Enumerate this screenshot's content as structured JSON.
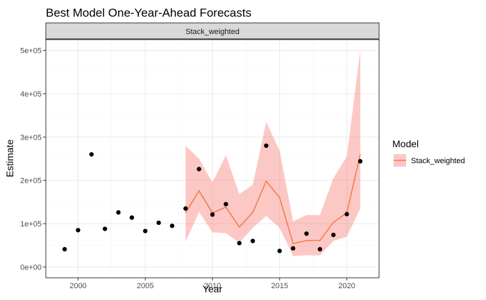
{
  "chart_data": {
    "type": "line",
    "title": "Best Model One-Year-Ahead Forecasts",
    "facet_label": "Stack_weighted",
    "xlabel": "Year",
    "ylabel": "Estimate",
    "xlim": [
      1997.6,
      2022.4
    ],
    "ylim": [
      -25000,
      525000
    ],
    "x_ticks": [
      2000,
      2005,
      2010,
      2015,
      2020
    ],
    "x_tick_labels": [
      "2000",
      "2005",
      "2010",
      "2015",
      "2020"
    ],
    "y_ticks": [
      0,
      100000,
      200000,
      300000,
      400000,
      500000
    ],
    "y_tick_labels": [
      "0e+00",
      "1e+05",
      "2e+05",
      "3e+05",
      "4e+05",
      "5e+05"
    ],
    "grid": true,
    "legend": {
      "title": "Model",
      "position": "right",
      "entries": [
        "Stack_weighted"
      ]
    },
    "points": {
      "x": [
        1999,
        2000,
        2001,
        2002,
        2003,
        2004,
        2005,
        2006,
        2007,
        2008,
        2009,
        2010,
        2011,
        2012,
        2013,
        2014,
        2015,
        2016,
        2017,
        2018,
        2019,
        2020,
        2021
      ],
      "y": [
        41000,
        85000,
        260000,
        88000,
        126000,
        114000,
        83000,
        102000,
        95000,
        135000,
        226000,
        121000,
        145000,
        55000,
        60000,
        280000,
        37000,
        43000,
        77000,
        41000,
        74000,
        122000,
        244000
      ]
    },
    "series": [
      {
        "name": "Stack_weighted",
        "x": [
          2008,
          2009,
          2010,
          2011,
          2012,
          2013,
          2014,
          2015,
          2016,
          2017,
          2018,
          2019,
          2020,
          2021
        ],
        "values": [
          125000,
          176000,
          125000,
          138000,
          92000,
          126000,
          198000,
          160000,
          54000,
          61000,
          61000,
          103000,
          125000,
          260000
        ],
        "lower": [
          58000,
          127000,
          80000,
          78000,
          56000,
          90000,
          118000,
          90000,
          25000,
          27000,
          27000,
          60000,
          70000,
          135000
        ],
        "upper": [
          280000,
          250000,
          195000,
          258000,
          168000,
          190000,
          335000,
          268000,
          105000,
          120000,
          120000,
          205000,
          255000,
          500000
        ]
      }
    ],
    "colors": {
      "line": "#f47c4d",
      "ribbon": "#f8766d",
      "points": "#000000",
      "panel_border": "#333333",
      "strip_fill": "#d9d9d9",
      "grid_major": "#ebebeb",
      "grid_minor": "#f5f5f5"
    }
  }
}
